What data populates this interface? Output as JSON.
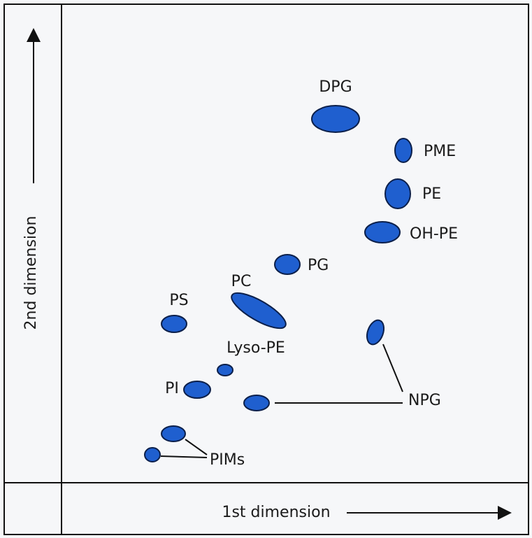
{
  "axes": {
    "x_label": "1st dimension",
    "y_label": "2nd dimension"
  },
  "spots": [
    {
      "label": "DPG"
    },
    {
      "label": "PME"
    },
    {
      "label": "PE"
    },
    {
      "label": "OH-PE"
    },
    {
      "label": "PG"
    },
    {
      "label": "PC"
    },
    {
      "label": "PS"
    },
    {
      "label": "NPG"
    },
    {
      "label": "Lyso-PE"
    },
    {
      "label": "PI"
    },
    {
      "label": "PIMs"
    }
  ]
}
